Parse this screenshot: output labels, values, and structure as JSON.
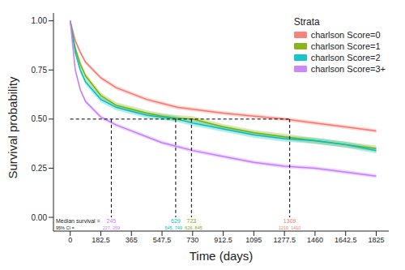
{
  "chart_data": {
    "type": "line",
    "x_label": "Time (days)",
    "y_label": "Survival probability",
    "legend_title": "Strata",
    "legend": "top-right",
    "grid": false,
    "xlim": [
      -100,
      1900
    ],
    "xticks": [
      0,
      182.5,
      365,
      547.5,
      730,
      912.5,
      1095,
      1277.5,
      1460,
      1642.5,
      1825
    ],
    "ylim": [
      -0.07,
      1.04
    ],
    "yticks": [
      {
        "value": 0,
        "label": "0.00"
      },
      {
        "value": 0.25,
        "label": "0.25"
      },
      {
        "value": 0.5,
        "label": "0.50"
      },
      {
        "value": 0.75,
        "label": "0.75"
      },
      {
        "value": 1,
        "label": "1.00"
      }
    ],
    "x": [
      0,
      30,
      60,
      91,
      182.5,
      273.75,
      365,
      456,
      547.5,
      638,
      730,
      912.5,
      1095,
      1277.5,
      1460,
      1642.5,
      1825
    ],
    "series": [
      {
        "name": "charlson Score=0",
        "color": "#F8766D",
        "values": [
          1,
          0.9,
          0.84,
          0.79,
          0.71,
          0.66,
          0.63,
          0.6,
          0.58,
          0.56,
          0.55,
          0.53,
          0.515,
          0.5,
          0.48,
          0.46,
          0.44
        ],
        "lower": [
          1,
          0.89,
          0.83,
          0.78,
          0.7,
          0.65,
          0.62,
          0.59,
          0.57,
          0.55,
          0.54,
          0.52,
          0.505,
          0.49,
          0.47,
          0.45,
          0.43
        ],
        "upper": [
          1,
          0.91,
          0.85,
          0.8,
          0.72,
          0.67,
          0.64,
          0.61,
          0.59,
          0.57,
          0.56,
          0.54,
          0.525,
          0.51,
          0.49,
          0.47,
          0.45
        ]
      },
      {
        "name": "charlson Score=1",
        "color": "#7CAE00",
        "values": [
          1,
          0.86,
          0.78,
          0.72,
          0.62,
          0.57,
          0.55,
          0.53,
          0.515,
          0.505,
          0.5,
          0.46,
          0.43,
          0.41,
          0.39,
          0.37,
          0.35
        ],
        "lower": [
          1,
          0.845,
          0.765,
          0.705,
          0.605,
          0.555,
          0.535,
          0.515,
          0.5,
          0.49,
          0.485,
          0.445,
          0.415,
          0.395,
          0.375,
          0.355,
          0.335
        ],
        "upper": [
          1,
          0.875,
          0.795,
          0.735,
          0.635,
          0.585,
          0.565,
          0.545,
          0.53,
          0.52,
          0.515,
          0.475,
          0.445,
          0.425,
          0.405,
          0.385,
          0.365
        ]
      },
      {
        "name": "charlson Score=2",
        "color": "#00BFC4",
        "values": [
          1,
          0.84,
          0.75,
          0.69,
          0.6,
          0.56,
          0.54,
          0.52,
          0.51,
          0.5,
          0.48,
          0.45,
          0.42,
          0.4,
          0.39,
          0.37,
          0.34
        ],
        "lower": [
          1,
          0.825,
          0.735,
          0.675,
          0.585,
          0.545,
          0.525,
          0.505,
          0.495,
          0.485,
          0.465,
          0.435,
          0.405,
          0.385,
          0.375,
          0.355,
          0.325
        ],
        "upper": [
          1,
          0.855,
          0.765,
          0.705,
          0.615,
          0.575,
          0.555,
          0.535,
          0.525,
          0.515,
          0.495,
          0.465,
          0.435,
          0.415,
          0.405,
          0.385,
          0.355
        ]
      },
      {
        "name": "charlson Score=3+",
        "color": "#C77CFF",
        "values": [
          1,
          0.75,
          0.65,
          0.59,
          0.51,
          0.47,
          0.44,
          0.41,
          0.38,
          0.36,
          0.34,
          0.31,
          0.28,
          0.26,
          0.25,
          0.23,
          0.21
        ],
        "lower": [
          1,
          0.74,
          0.64,
          0.58,
          0.5,
          0.46,
          0.43,
          0.4,
          0.37,
          0.35,
          0.33,
          0.3,
          0.27,
          0.25,
          0.24,
          0.22,
          0.2
        ],
        "upper": [
          1,
          0.76,
          0.66,
          0.6,
          0.52,
          0.48,
          0.45,
          0.42,
          0.39,
          0.37,
          0.35,
          0.32,
          0.29,
          0.27,
          0.26,
          0.24,
          0.22
        ]
      }
    ],
    "annotations": {
      "median_label": "Median survival =",
      "ci_label": "95% CI =",
      "median_probability": 0.5,
      "medians": [
        {
          "value": 245,
          "ci": "227, 269",
          "series": "charlson Score=3+"
        },
        {
          "value": 629,
          "ci": "545, 749",
          "series": "charlson Score=2"
        },
        {
          "value": 723,
          "ci": "626, 845",
          "series": "charlson Score=1"
        },
        {
          "value": 1309,
          "ci": "1210, 1410",
          "series": "charlson Score=0"
        }
      ]
    }
  }
}
